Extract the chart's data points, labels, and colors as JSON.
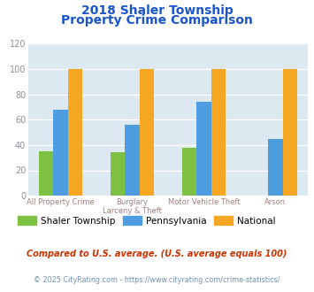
{
  "title_line1": "2018 Shaler Township",
  "title_line2": "Property Crime Comparison",
  "cat_labels_line1": [
    "All Property Crime",
    "Burglary",
    "Motor Vehicle Theft",
    "Arson"
  ],
  "cat_labels_line2": [
    "",
    "Larceny & Theft",
    "",
    ""
  ],
  "shaler": [
    35,
    34,
    38,
    0
  ],
  "pennsylvania": [
    68,
    56,
    74,
    45
  ],
  "national": [
    100,
    100,
    100,
    100
  ],
  "colors": {
    "shaler": "#7dc142",
    "pennsylvania": "#4d9de0",
    "national": "#f5a623"
  },
  "ylim": [
    0,
    120
  ],
  "yticks": [
    0,
    20,
    40,
    60,
    80,
    100,
    120
  ],
  "title_color": "#1a55cc",
  "bg_color": "#dde9f0",
  "legend_labels": [
    "Shaler Township",
    "Pennsylvania",
    "National"
  ],
  "footnote1": "Compared to U.S. average. (U.S. average equals 100)",
  "footnote2": "© 2025 CityRating.com - https://www.cityrating.com/crime-statistics/",
  "footnote1_color": "#cc3300",
  "footnote2_color": "#7090b0",
  "xticklabel_color": "#a08080",
  "ytick_color": "#9090a0"
}
